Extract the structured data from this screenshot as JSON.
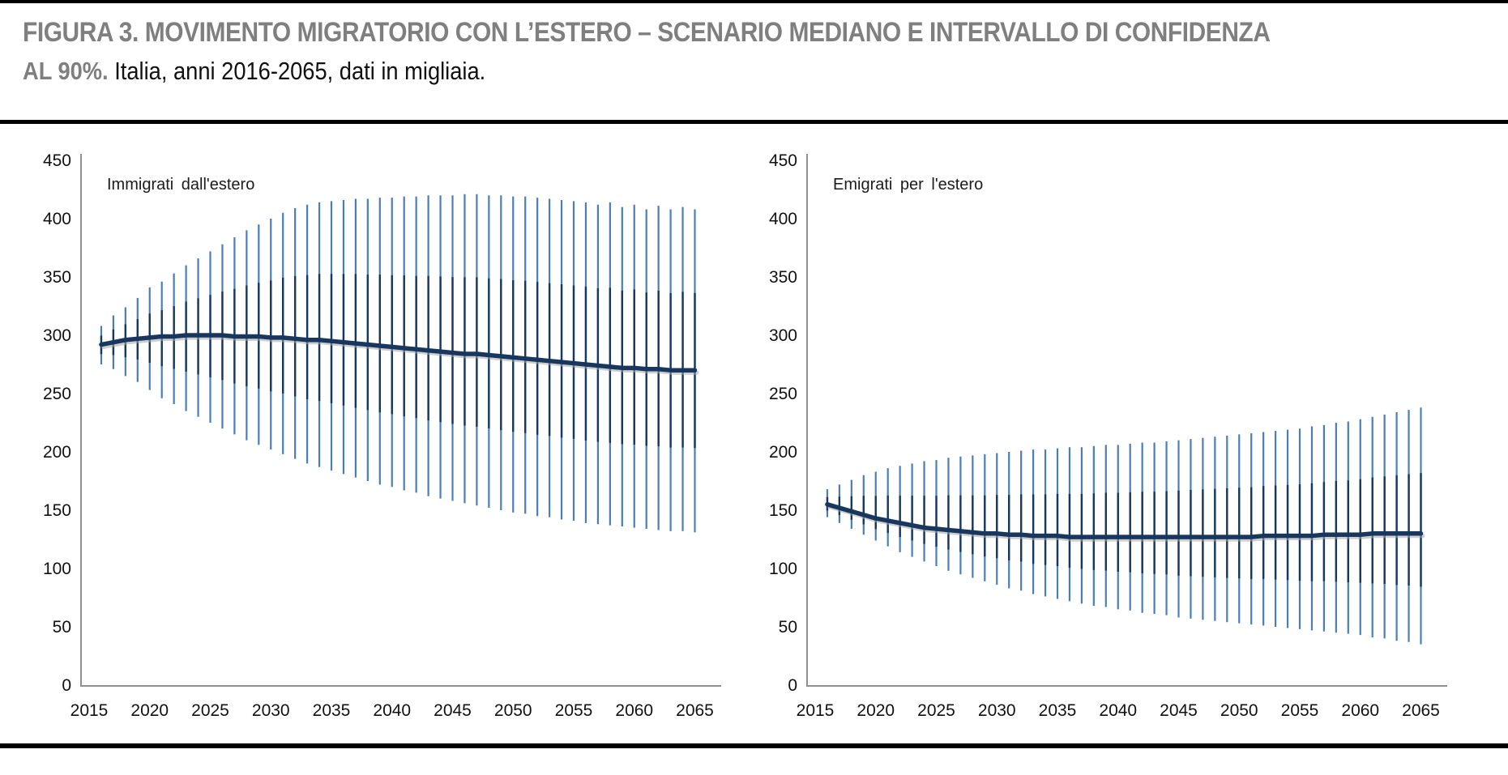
{
  "header": {
    "title_line1": "FIGURA 3. MOVIMENTO MIGRATORIO CON L’ESTERO – SCENARIO MEDIANO E INTERVALLO DI CONFIDENZA",
    "title_line2_bold": "AL 90%.",
    "subtitle": "Italia, anni 2016-2065, dati in migliaia."
  },
  "chart_data": [
    {
      "type": "line",
      "subtype": "median-with-90pct-confidence-error-bars",
      "title": "Immigrati dall'estero",
      "xlabel": "",
      "ylabel": "",
      "ylim": [
        0,
        450
      ],
      "yticks": [
        0,
        50,
        100,
        150,
        200,
        250,
        300,
        350,
        400,
        450
      ],
      "xticks": [
        2015,
        2020,
        2025,
        2030,
        2035,
        2040,
        2045,
        2050,
        2055,
        2060,
        2065
      ],
      "grid": false,
      "legend": "none",
      "inner_band_fraction": 0.48,
      "colors": {
        "median": "#17375E",
        "interval": "#4A7EBB",
        "axis": "#8f8f8f",
        "shadow": "#a6a6a6"
      },
      "x": [
        2016,
        2017,
        2018,
        2019,
        2020,
        2021,
        2022,
        2023,
        2024,
        2025,
        2026,
        2027,
        2028,
        2029,
        2030,
        2031,
        2032,
        2033,
        2034,
        2035,
        2036,
        2037,
        2038,
        2039,
        2040,
        2041,
        2042,
        2043,
        2044,
        2045,
        2046,
        2047,
        2048,
        2049,
        2050,
        2051,
        2052,
        2053,
        2054,
        2055,
        2056,
        2057,
        2058,
        2059,
        2060,
        2061,
        2062,
        2063,
        2064,
        2065
      ],
      "series": [
        {
          "name": "mediana",
          "values": [
            292,
            294,
            296,
            297,
            298,
            299,
            299,
            300,
            300,
            300,
            300,
            299,
            299,
            299,
            298,
            298,
            297,
            296,
            296,
            295,
            294,
            293,
            292,
            291,
            290,
            289,
            288,
            287,
            286,
            285,
            284,
            284,
            283,
            282,
            281,
            280,
            279,
            278,
            277,
            276,
            275,
            274,
            273,
            272,
            272,
            271,
            271,
            270,
            270,
            270
          ]
        },
        {
          "name": "ci90_inferiore",
          "values": [
            275,
            271,
            265,
            260,
            253,
            246,
            241,
            235,
            230,
            225,
            220,
            215,
            210,
            206,
            202,
            198,
            194,
            190,
            187,
            184,
            181,
            178,
            175,
            172,
            170,
            167,
            165,
            162,
            160,
            158,
            156,
            154,
            152,
            150,
            148,
            147,
            145,
            144,
            142,
            141,
            139,
            138,
            137,
            136,
            135,
            134,
            133,
            132,
            132,
            131
          ]
        },
        {
          "name": "ci90_superiore",
          "values": [
            308,
            317,
            324,
            332,
            341,
            346,
            353,
            360,
            366,
            372,
            378,
            384,
            390,
            395,
            400,
            405,
            409,
            412,
            414,
            415,
            416,
            417,
            417,
            418,
            418,
            419,
            419,
            420,
            420,
            420,
            421,
            421,
            420,
            420,
            419,
            419,
            418,
            417,
            416,
            415,
            414,
            412,
            414,
            410,
            412,
            408,
            411,
            408,
            410,
            408
          ]
        }
      ]
    },
    {
      "type": "line",
      "subtype": "median-with-90pct-confidence-error-bars",
      "title": "Emigrati per l'estero",
      "xlabel": "",
      "ylabel": "",
      "ylim": [
        0,
        450
      ],
      "yticks": [
        0,
        50,
        100,
        150,
        200,
        250,
        300,
        350,
        400,
        450
      ],
      "xticks": [
        2015,
        2020,
        2025,
        2030,
        2035,
        2040,
        2045,
        2050,
        2055,
        2060,
        2065
      ],
      "grid": false,
      "legend": "none",
      "inner_band_fraction": 0.48,
      "colors": {
        "median": "#17375E",
        "interval": "#4A7EBB",
        "axis": "#8f8f8f",
        "shadow": "#a6a6a6"
      },
      "x": [
        2016,
        2017,
        2018,
        2019,
        2020,
        2021,
        2022,
        2023,
        2024,
        2025,
        2026,
        2027,
        2028,
        2029,
        2030,
        2031,
        2032,
        2033,
        2034,
        2035,
        2036,
        2037,
        2038,
        2039,
        2040,
        2041,
        2042,
        2043,
        2044,
        2045,
        2046,
        2047,
        2048,
        2049,
        2050,
        2051,
        2052,
        2053,
        2054,
        2055,
        2056,
        2057,
        2058,
        2059,
        2060,
        2061,
        2062,
        2063,
        2064,
        2065
      ],
      "series": [
        {
          "name": "mediana",
          "values": [
            155,
            152,
            149,
            146,
            143,
            141,
            139,
            137,
            135,
            134,
            133,
            132,
            131,
            130,
            130,
            129,
            129,
            128,
            128,
            128,
            127,
            127,
            127,
            127,
            127,
            127,
            127,
            127,
            127,
            127,
            127,
            127,
            127,
            127,
            127,
            127,
            128,
            128,
            128,
            128,
            128,
            129,
            129,
            129,
            129,
            130,
            130,
            130,
            130,
            130
          ]
        },
        {
          "name": "ci90_inferiore",
          "values": [
            144,
            139,
            134,
            129,
            124,
            119,
            114,
            110,
            106,
            102,
            98,
            95,
            92,
            89,
            86,
            83,
            81,
            78,
            76,
            74,
            72,
            70,
            68,
            67,
            65,
            64,
            62,
            61,
            60,
            58,
            57,
            56,
            55,
            54,
            53,
            52,
            51,
            50,
            49,
            48,
            47,
            46,
            45,
            44,
            43,
            41,
            40,
            38,
            37,
            35
          ]
        },
        {
          "name": "ci90_superiore",
          "values": [
            168,
            172,
            176,
            180,
            183,
            186,
            188,
            190,
            192,
            193,
            195,
            196,
            197,
            198,
            199,
            200,
            201,
            202,
            202,
            203,
            204,
            204,
            205,
            206,
            206,
            207,
            208,
            208,
            209,
            210,
            211,
            212,
            213,
            214,
            215,
            216,
            217,
            218,
            219,
            220,
            222,
            223,
            225,
            226,
            228,
            230,
            232,
            234,
            236,
            238
          ]
        }
      ]
    }
  ]
}
